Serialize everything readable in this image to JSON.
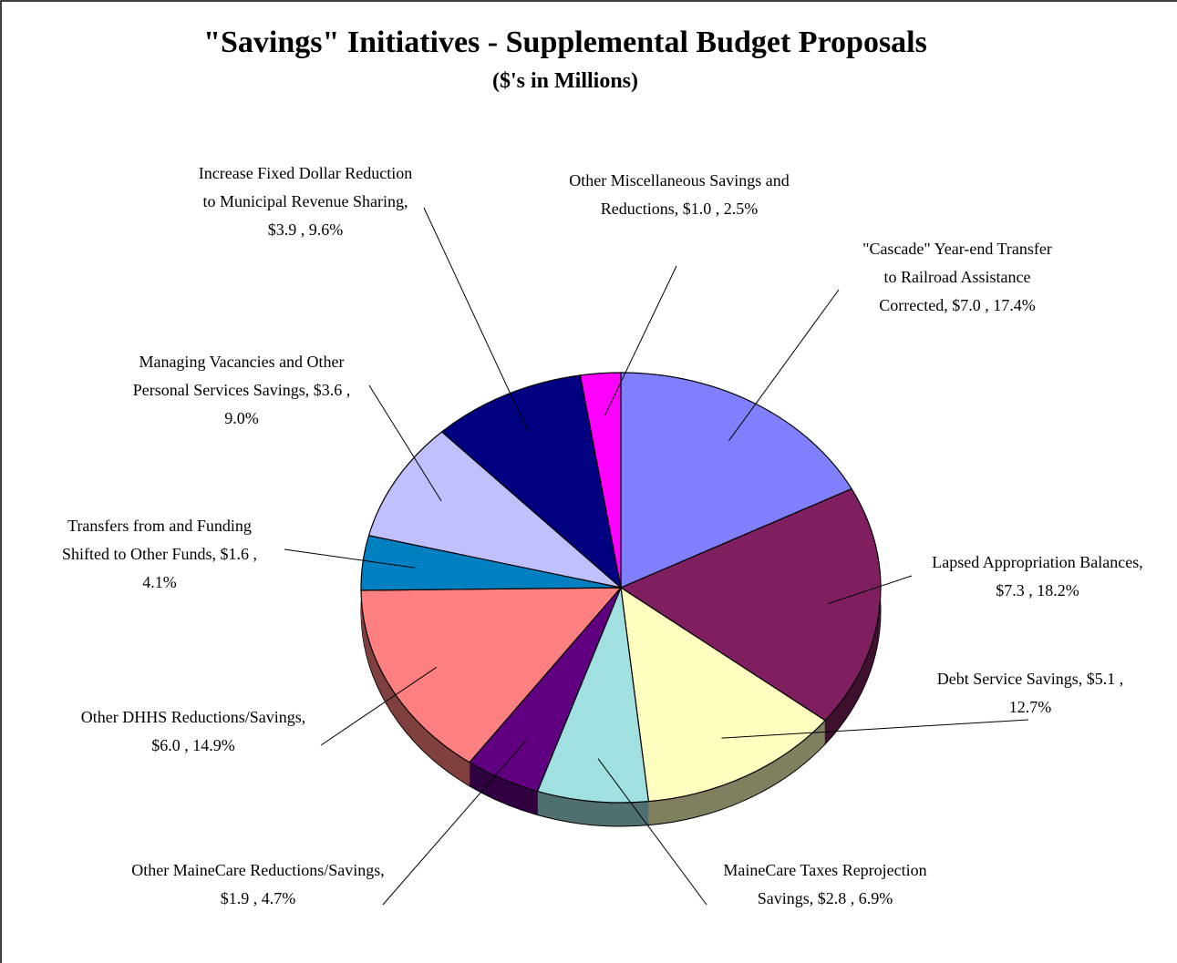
{
  "chart_data": {
    "type": "pie",
    "title": "\"Savings\" Initiatives - Supplemental Budget Proposals",
    "subtitle": "($'s in Millions)",
    "values": [
      7.0,
      7.3,
      5.1,
      2.8,
      1.9,
      6.0,
      1.6,
      3.6,
      3.9,
      1.0
    ],
    "percents": [
      17.4,
      18.2,
      12.7,
      6.9,
      4.7,
      14.9,
      4.1,
      9.0,
      9.6,
      2.5
    ],
    "value_labels": [
      "\"Cascade\" Year-end Transfer to Railroad Assistance Corrected, $7.0 , 17.4%",
      "Lapsed Appropriation Balances, $7.3 , 18.2%",
      "Debt Service Savings, $5.1 , 12.7%",
      "MaineCare Taxes Reprojection Savings, $2.8 , 6.9%",
      "Other MaineCare Reductions/Savings, $1.9 , 4.7%",
      "Other DHHS Reductions/Savings, $6.0 , 14.9%",
      "Transfers from and Funding Shifted to Other Funds, $1.6 , 4.1%",
      "Managing Vacancies and Other Personal Services Savings, $3.6 , 9.0%",
      "Increase Fixed Dollar Reduction to Municipal Revenue Sharing, $3.9 , 9.6%",
      "Other Miscellaneous Savings and Reductions, $1.0 , 2.5%"
    ],
    "colors": [
      "#8080ff",
      "#7f1f5f",
      "#ffffc0",
      "#a0e0e0",
      "#600080",
      "#ff8080",
      "#0080c0",
      "#c0c0ff",
      "#000080",
      "#ff00ff"
    ]
  }
}
